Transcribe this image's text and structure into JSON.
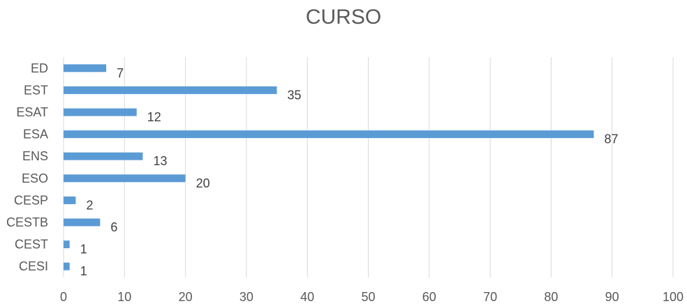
{
  "chart_data": {
    "type": "bar",
    "orientation": "horizontal",
    "title": "CURSO",
    "xlabel": "",
    "ylabel": "",
    "categories": [
      "ED",
      "EST",
      "ESAT",
      "ESA",
      "ENS",
      "ESO",
      "CESP",
      "CESTB",
      "CEST",
      "CESI"
    ],
    "values": [
      7,
      35,
      12,
      87,
      13,
      20,
      2,
      6,
      1,
      1
    ],
    "xlim": [
      0,
      100
    ],
    "xticks": [
      0,
      10,
      20,
      30,
      40,
      50,
      60,
      70,
      80,
      90,
      100
    ],
    "grid": "vertical",
    "legend": "none",
    "data_labels": true,
    "colors": {
      "bar": "#5b9bd5",
      "grid": "#d9d9d9",
      "text": "#595959"
    }
  }
}
